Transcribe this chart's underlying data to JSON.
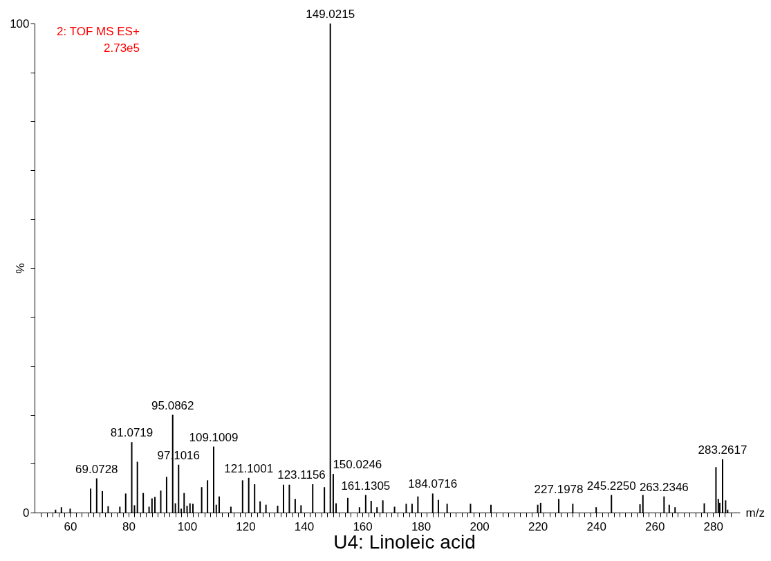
{
  "chart_data": {
    "type": "bar",
    "title": "U4: Linoleic acid",
    "xlabel": "m/z",
    "ylabel": "%",
    "annotations": [
      "2: TOF MS ES+",
      "2.73e5",
      {
        "text": "69.0728",
        "x": 69.0728,
        "y": 7.0
      },
      {
        "text": "81.0719",
        "x": 81.0719,
        "y": 14.4
      },
      {
        "text": "95.0862",
        "x": 95.0862,
        "y": 20
      },
      {
        "text": "97.1016",
        "x": 97.1016,
        "y": 9.8
      },
      {
        "text": "109.1009",
        "x": 109.1009,
        "y": 13.5
      },
      {
        "text": "121.1001",
        "x": 121.1001,
        "y": 7.1
      },
      {
        "text": "123.1156",
        "x": 123.1156,
        "y": 5.8
      },
      {
        "text": "149.0215",
        "x": 149.0215,
        "y": 100
      },
      {
        "text": "150.0246",
        "x": 150.0246,
        "y": 7.9
      },
      {
        "text": "161.1305",
        "x": 161.1305,
        "y": 3.6
      },
      {
        "text": "184.0716",
        "x": 184.0716,
        "y": 3.9
      },
      {
        "text": "227.1978",
        "x": 227.1978,
        "y": 2.8
      },
      {
        "text": "245.2250",
        "x": 245.225,
        "y": 3.6
      },
      {
        "text": "263.2346",
        "x": 263.2346,
        "y": 3.3
      },
      {
        "text": "283.2617",
        "x": 283.2617,
        "y": 10.9
      }
    ],
    "xlim": [
      49,
      288
    ],
    "xticks": [
      {
        "value": 50,
        "label": null
      },
      {
        "value": 52,
        "label": null
      },
      {
        "value": 54,
        "label": null
      },
      {
        "value": 56,
        "label": null
      },
      {
        "value": 58,
        "label": null
      },
      60,
      {
        "value": 62,
        "label": null
      },
      {
        "value": 64,
        "label": null
      },
      {
        "value": 66,
        "label": null
      },
      {
        "value": 68,
        "label": null
      },
      {
        "value": 70,
        "label": null
      },
      {
        "value": 72,
        "label": null
      },
      {
        "value": 74,
        "label": null
      },
      {
        "value": 76,
        "label": null
      },
      {
        "value": 78,
        "label": null
      },
      80,
      {
        "value": 82,
        "label": null
      },
      {
        "value": 84,
        "label": null
      },
      {
        "value": 86,
        "label": null
      },
      {
        "value": 88,
        "label": null
      },
      {
        "value": 90,
        "label": null
      },
      {
        "value": 92,
        "label": null
      },
      {
        "value": 94,
        "label": null
      },
      {
        "value": 96,
        "label": null
      },
      {
        "value": 98,
        "label": null
      },
      100,
      {
        "value": 102,
        "label": null
      },
      {
        "value": 104,
        "label": null
      },
      {
        "value": 106,
        "label": null
      },
      {
        "value": 108,
        "label": null
      },
      {
        "value": 110,
        "label": null
      },
      {
        "value": 112,
        "label": null
      },
      {
        "value": 114,
        "label": null
      },
      {
        "value": 116,
        "label": null
      },
      {
        "value": 118,
        "label": null
      },
      120,
      {
        "value": 122,
        "label": null
      },
      {
        "value": 124,
        "label": null
      },
      {
        "value": 126,
        "label": null
      },
      {
        "value": 128,
        "label": null
      },
      {
        "value": 130,
        "label": null
      },
      {
        "value": 132,
        "label": null
      },
      {
        "value": 134,
        "label": null
      },
      {
        "value": 136,
        "label": null
      },
      {
        "value": 138,
        "label": null
      },
      140,
      {
        "value": 142,
        "label": null
      },
      {
        "value": 144,
        "label": null
      },
      {
        "value": 146,
        "label": null
      },
      {
        "value": 148,
        "label": null
      },
      {
        "value": 150,
        "label": null
      },
      {
        "value": 152,
        "label": null
      },
      {
        "value": 154,
        "label": null
      },
      {
        "value": 156,
        "label": null
      },
      {
        "value": 158,
        "label": null
      },
      160,
      {
        "value": 162,
        "label": null
      },
      {
        "value": 164,
        "label": null
      },
      {
        "value": 166,
        "label": null
      },
      {
        "value": 168,
        "label": null
      },
      {
        "value": 170,
        "label": null
      },
      {
        "value": 172,
        "label": null
      },
      {
        "value": 174,
        "label": null
      },
      {
        "value": 176,
        "label": null
      },
      {
        "value": 178,
        "label": null
      },
      180,
      {
        "value": 182,
        "label": null
      },
      {
        "value": 184,
        "label": null
      },
      {
        "value": 186,
        "label": null
      },
      {
        "value": 188,
        "label": null
      },
      {
        "value": 190,
        "label": null
      },
      {
        "value": 192,
        "label": null
      },
      {
        "value": 194,
        "label": null
      },
      {
        "value": 196,
        "label": null
      },
      {
        "value": 198,
        "label": null
      },
      200,
      {
        "value": 202,
        "label": null
      },
      {
        "value": 204,
        "label": null
      },
      {
        "value": 206,
        "label": null
      },
      {
        "value": 208,
        "label": null
      },
      {
        "value": 210,
        "label": null
      },
      {
        "value": 212,
        "label": null
      },
      {
        "value": 214,
        "label": null
      },
      {
        "value": 216,
        "label": null
      },
      {
        "value": 218,
        "label": null
      },
      220,
      {
        "value": 222,
        "label": null
      },
      {
        "value": 224,
        "label": null
      },
      {
        "value": 226,
        "label": null
      },
      {
        "value": 228,
        "label": null
      },
      {
        "value": 230,
        "label": null
      },
      {
        "value": 232,
        "label": null
      },
      {
        "value": 234,
        "label": null
      },
      {
        "value": 236,
        "label": null
      },
      {
        "value": 238,
        "label": null
      },
      240,
      {
        "value": 242,
        "label": null
      },
      {
        "value": 244,
        "label": null
      },
      {
        "value": 246,
        "label": null
      },
      {
        "value": 248,
        "label": null
      },
      {
        "value": 250,
        "label": null
      },
      {
        "value": 252,
        "label": null
      },
      {
        "value": 254,
        "label": null
      },
      {
        "value": 256,
        "label": null
      },
      {
        "value": 258,
        "label": null
      },
      260,
      {
        "value": 262,
        "label": null
      },
      {
        "value": 264,
        "label": null
      },
      {
        "value": 266,
        "label": null
      },
      {
        "value": 268,
        "label": null
      },
      {
        "value": 270,
        "label": null
      },
      {
        "value": 272,
        "label": null
      },
      {
        "value": 274,
        "label": null
      },
      {
        "value": 276,
        "label": null
      },
      {
        "value": 278,
        "label": null
      },
      280,
      {
        "value": 282,
        "label": null
      },
      {
        "value": 284,
        "label": null
      },
      {
        "value": 286,
        "label": null
      }
    ],
    "ylim": [
      0,
      100
    ],
    "yticks": [
      0,
      {
        "value": 10,
        "label": null
      },
      {
        "value": 20,
        "label": null
      },
      {
        "value": 30,
        "label": null
      },
      {
        "value": 40,
        "label": null
      },
      {
        "value": 50,
        "label": null
      },
      {
        "value": 60,
        "label": null
      },
      {
        "value": 70,
        "label": null
      },
      {
        "value": 80,
        "label": null
      },
      {
        "value": 90,
        "label": null
      },
      100
    ],
    "grid": false,
    "series": [
      {
        "color": "#000000",
        "x": [
          55,
          57,
          60,
          67,
          69.0728,
          71,
          73,
          77,
          79,
          81.0719,
          82,
          83,
          85,
          87,
          88,
          89,
          91,
          93,
          95.0862,
          96,
          97.1016,
          98,
          99,
          100,
          101,
          102,
          105,
          107,
          109.1009,
          110,
          111,
          115,
          119,
          121.1001,
          123.1156,
          125,
          127,
          131,
          133,
          135,
          137,
          139,
          143,
          147,
          149.0215,
          150.0246,
          151,
          155,
          159,
          161.1305,
          163,
          165,
          167,
          171,
          175,
          177,
          179,
          184.0716,
          186,
          189,
          197,
          204,
          220,
          221,
          227.1978,
          232,
          240,
          245.225,
          255,
          256,
          263.2346,
          265,
          267,
          277,
          281,
          281.8,
          282.3,
          283.2617,
          284.3,
          285
        ],
        "values": [
          0.6,
          1.1,
          0.8,
          4.9,
          7.0,
          4.4,
          1.3,
          1.2,
          3.9,
          14.4,
          1.5,
          10.4,
          4.0,
          1.2,
          2.9,
          3.2,
          4.5,
          7.3,
          20,
          1.9,
          9.8,
          0.8,
          4.0,
          1.4,
          1.9,
          1.8,
          5.2,
          6.6,
          13.5,
          1.6,
          3.3,
          1.2,
          6.6,
          7.1,
          5.8,
          2.3,
          1.6,
          1.4,
          5.7,
          5.7,
          2.8,
          1.5,
          5.8,
          5.2,
          100,
          7.9,
          1.9,
          3.0,
          1.1,
          3.6,
          2.4,
          1.1,
          2.5,
          1.2,
          1.8,
          1.8,
          3.3,
          3.9,
          2.6,
          1.8,
          1.8,
          1.6,
          1.6,
          2.0,
          2.8,
          1.8,
          1.1,
          3.6,
          1.7,
          3.6,
          3.3,
          1.6,
          1.1,
          1.9,
          9.3,
          2.8,
          2.0,
          10.9,
          2.5,
          0.6
        ]
      }
    ]
  }
}
